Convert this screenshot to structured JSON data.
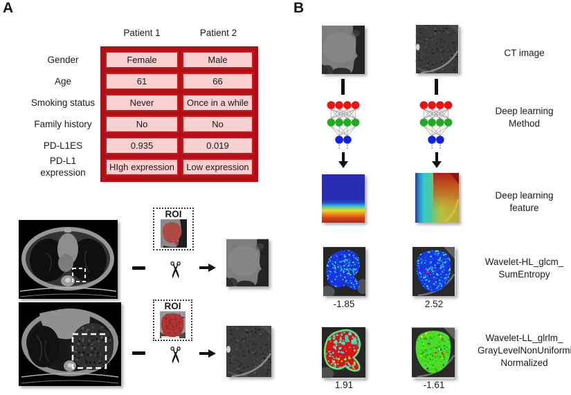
{
  "panelA": {
    "label": "A",
    "table": {
      "col_headers": [
        "Patient 1",
        "Patient 2"
      ],
      "rows": [
        {
          "label": "Gender",
          "p1": "Female",
          "p2": "Male"
        },
        {
          "label": "Age",
          "p1": "61",
          "p2": "66"
        },
        {
          "label": "Smoking status",
          "p1": "Never",
          "p2": "Once in a while"
        },
        {
          "label": "Family history",
          "p1": "No",
          "p2": "No"
        },
        {
          "label": "PD-L1ES",
          "p1": "0.935",
          "p2": "0.019"
        },
        {
          "label": "PD-L1\nexpression",
          "p1": "HIgh expression",
          "p2": "Low expression"
        }
      ],
      "colors": {
        "frame": "#b30f16",
        "cell_bg": "#f9cfcf",
        "cell_border": "#cb1a1f"
      }
    },
    "workflow": {
      "roi_label": "ROI",
      "icons": {
        "scissors": "✂"
      }
    }
  },
  "panelB": {
    "label": "B",
    "row_labels": {
      "ct": "CT image",
      "dl_method": "Deep learning\nMethod",
      "dl_feature": "Deep learning\nfeature",
      "wavelet_hl": "Wavelet-HL_glcm_\nSumEntropy",
      "wavelet_ll": "Wavelet-LL_glrlm_\nGrayLevelNonUniformity\nNormalized"
    },
    "values": {
      "wavelet_hl": {
        "patient1": "-1.85",
        "patient2": "2.52"
      },
      "wavelet_ll": {
        "patient1": "1.91",
        "patient2": "-1.61"
      }
    },
    "nn_colors": {
      "input": "#ee1111",
      "hidden": "#22aa22",
      "output": "#1122dd"
    }
  }
}
